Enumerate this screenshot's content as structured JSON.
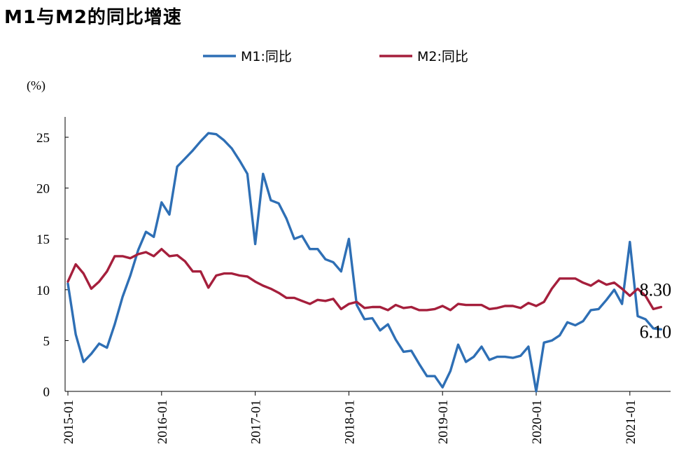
{
  "chart_data": {
    "type": "line",
    "title": "M1与M2的同比增速",
    "ylabel": "(%)",
    "xlabel": "",
    "ylim": [
      0,
      27
    ],
    "yticks": [
      0,
      5,
      10,
      15,
      20,
      25
    ],
    "xtick_labels": [
      "2015-01",
      "2016-01",
      "2017-01",
      "2018-01",
      "2019-01",
      "2020-01",
      "2021-01"
    ],
    "x_start": "2015-01",
    "grid": false,
    "legend_position": "top",
    "series": [
      {
        "name": "M1:同比",
        "color": "#2e6fb5",
        "values": [
          10.6,
          5.6,
          2.9,
          3.7,
          4.7,
          4.3,
          6.6,
          9.3,
          11.4,
          13.9,
          15.7,
          15.2,
          18.6,
          17.4,
          22.1,
          22.9,
          23.7,
          24.6,
          25.4,
          25.3,
          24.7,
          23.9,
          22.7,
          21.4,
          14.5,
          21.4,
          18.8,
          18.5,
          17.0,
          15.0,
          15.3,
          14.0,
          14.0,
          13.0,
          12.7,
          11.8,
          15.0,
          8.5,
          7.1,
          7.2,
          6.0,
          6.6,
          5.1,
          3.9,
          4.0,
          2.7,
          1.5,
          1.5,
          0.4,
          2.0,
          4.6,
          2.9,
          3.4,
          4.4,
          3.1,
          3.4,
          3.4,
          3.3,
          3.5,
          4.4,
          0.0,
          4.8,
          5.0,
          5.5,
          6.8,
          6.5,
          6.9,
          8.0,
          8.1,
          9.0,
          10.0,
          8.6,
          14.7,
          7.4,
          7.1,
          6.2,
          6.1
        ],
        "end_label": "6.10"
      },
      {
        "name": "M2:同比",
        "color": "#a51f3c",
        "values": [
          10.8,
          12.5,
          11.6,
          10.1,
          10.8,
          11.8,
          13.3,
          13.3,
          13.1,
          13.5,
          13.7,
          13.3,
          14.0,
          13.3,
          13.4,
          12.8,
          11.8,
          11.8,
          10.2,
          11.4,
          11.6,
          11.6,
          11.4,
          11.3,
          10.8,
          10.4,
          10.1,
          9.7,
          9.2,
          9.2,
          8.9,
          8.6,
          9.0,
          8.9,
          9.1,
          8.1,
          8.6,
          8.8,
          8.2,
          8.3,
          8.3,
          8.0,
          8.5,
          8.2,
          8.3,
          8.0,
          8.0,
          8.1,
          8.4,
          8.0,
          8.6,
          8.5,
          8.5,
          8.5,
          8.1,
          8.2,
          8.4,
          8.4,
          8.2,
          8.7,
          8.4,
          8.8,
          10.1,
          11.1,
          11.1,
          11.1,
          10.7,
          10.4,
          10.9,
          10.5,
          10.7,
          10.1,
          9.4,
          10.1,
          9.4,
          8.1,
          8.3
        ],
        "end_label": "8.30"
      }
    ]
  }
}
